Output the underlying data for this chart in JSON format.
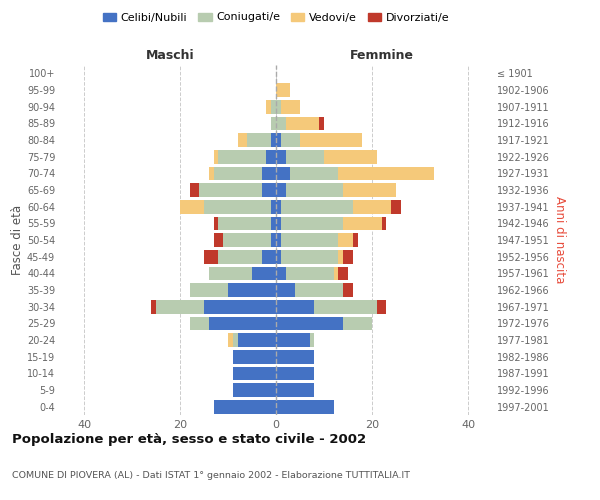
{
  "age_groups": [
    "0-4",
    "5-9",
    "10-14",
    "15-19",
    "20-24",
    "25-29",
    "30-34",
    "35-39",
    "40-44",
    "45-49",
    "50-54",
    "55-59",
    "60-64",
    "65-69",
    "70-74",
    "75-79",
    "80-84",
    "85-89",
    "90-94",
    "95-99",
    "100+"
  ],
  "birth_years": [
    "1997-2001",
    "1992-1996",
    "1987-1991",
    "1982-1986",
    "1977-1981",
    "1972-1976",
    "1967-1971",
    "1962-1966",
    "1957-1961",
    "1952-1956",
    "1947-1951",
    "1942-1946",
    "1937-1941",
    "1932-1936",
    "1927-1931",
    "1922-1926",
    "1917-1921",
    "1912-1916",
    "1907-1911",
    "1902-1906",
    "≤ 1901"
  ],
  "maschi": {
    "celibi": [
      13,
      9,
      9,
      9,
      8,
      14,
      15,
      10,
      5,
      3,
      1,
      1,
      1,
      3,
      3,
      2,
      1,
      0,
      0,
      0,
      0
    ],
    "coniugati": [
      0,
      0,
      0,
      0,
      1,
      4,
      10,
      8,
      9,
      9,
      10,
      11,
      14,
      13,
      10,
      10,
      5,
      1,
      1,
      0,
      0
    ],
    "vedovi": [
      0,
      0,
      0,
      0,
      1,
      0,
      0,
      0,
      0,
      0,
      0,
      0,
      5,
      0,
      1,
      1,
      2,
      0,
      1,
      0,
      0
    ],
    "divorziati": [
      0,
      0,
      0,
      0,
      0,
      0,
      1,
      0,
      0,
      3,
      2,
      1,
      0,
      2,
      0,
      0,
      0,
      0,
      0,
      0,
      0
    ]
  },
  "femmine": {
    "nubili": [
      12,
      8,
      8,
      8,
      7,
      14,
      8,
      4,
      2,
      1,
      1,
      1,
      1,
      2,
      3,
      2,
      1,
      0,
      0,
      0,
      0
    ],
    "coniugate": [
      0,
      0,
      0,
      0,
      1,
      6,
      13,
      10,
      10,
      12,
      12,
      13,
      15,
      12,
      10,
      8,
      4,
      2,
      1,
      0,
      0
    ],
    "vedove": [
      0,
      0,
      0,
      0,
      0,
      0,
      0,
      0,
      1,
      1,
      3,
      8,
      8,
      11,
      20,
      11,
      13,
      7,
      4,
      3,
      0
    ],
    "divorziate": [
      0,
      0,
      0,
      0,
      0,
      0,
      2,
      2,
      2,
      2,
      1,
      1,
      2,
      0,
      0,
      0,
      0,
      1,
      0,
      0,
      0
    ]
  },
  "colors": {
    "celibi_nubili": "#4472C4",
    "coniugati": "#B8CCB0",
    "vedovi": "#F5C97A",
    "divorziati": "#C0392B"
  },
  "xlim": 45,
  "title": "Popolazione per età, sesso e stato civile - 2002",
  "subtitle": "COMUNE DI PIOVERA (AL) - Dati ISTAT 1° gennaio 2002 - Elaborazione TUTTITALIA.IT",
  "ylabel_left": "Fasce di età",
  "ylabel_right": "Anni di nascita",
  "xlabel_left": "Maschi",
  "xlabel_right": "Femmine"
}
